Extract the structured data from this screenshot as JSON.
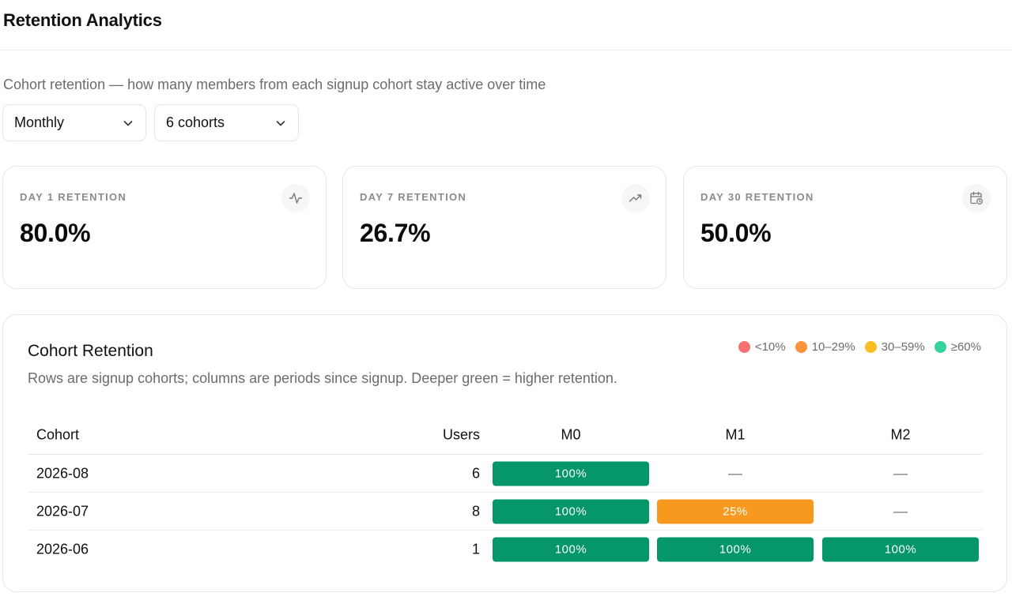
{
  "header": {
    "title": "Retention Analytics"
  },
  "subtitle": "Cohort retention — how many members from each signup cohort stay active over time",
  "filters": {
    "period": {
      "value": "Monthly"
    },
    "cohorts": {
      "value": "6 cohorts"
    }
  },
  "stats": [
    {
      "label": "DAY 1 RETENTION",
      "value": "80.0%",
      "icon": "activity-icon"
    },
    {
      "label": "DAY 7 RETENTION",
      "value": "26.7%",
      "icon": "trending-up-icon"
    },
    {
      "label": "DAY 30 RETENTION",
      "value": "50.0%",
      "icon": "calendar-clock-icon"
    }
  ],
  "panel": {
    "title": "Cohort Retention",
    "description": "Rows are signup cohorts; columns are periods since signup. Deeper green = higher retention.",
    "legend": [
      {
        "label": "<10%",
        "color": "#f87171"
      },
      {
        "label": "10–29%",
        "color": "#fb923c"
      },
      {
        "label": "30–59%",
        "color": "#fbbf24"
      },
      {
        "label": "≥60%",
        "color": "#34d399"
      }
    ],
    "table": {
      "headers": {
        "cohort": "Cohort",
        "users": "Users",
        "m0": "M0",
        "m1": "M1",
        "m2": "M2"
      },
      "empty_symbol": "—",
      "rows": [
        {
          "cohort": "2026-08",
          "users": "6",
          "cells": [
            {
              "text": "100%",
              "color": "#059669"
            },
            null,
            null
          ]
        },
        {
          "cohort": "2026-07",
          "users": "8",
          "cells": [
            {
              "text": "100%",
              "color": "#059669"
            },
            {
              "text": "25%",
              "color": "#f7981f"
            },
            null
          ]
        },
        {
          "cohort": "2026-06",
          "users": "1",
          "cells": [
            {
              "text": "100%",
              "color": "#059669"
            },
            {
              "text": "100%",
              "color": "#059669"
            },
            {
              "text": "100%",
              "color": "#059669"
            }
          ]
        }
      ]
    }
  }
}
